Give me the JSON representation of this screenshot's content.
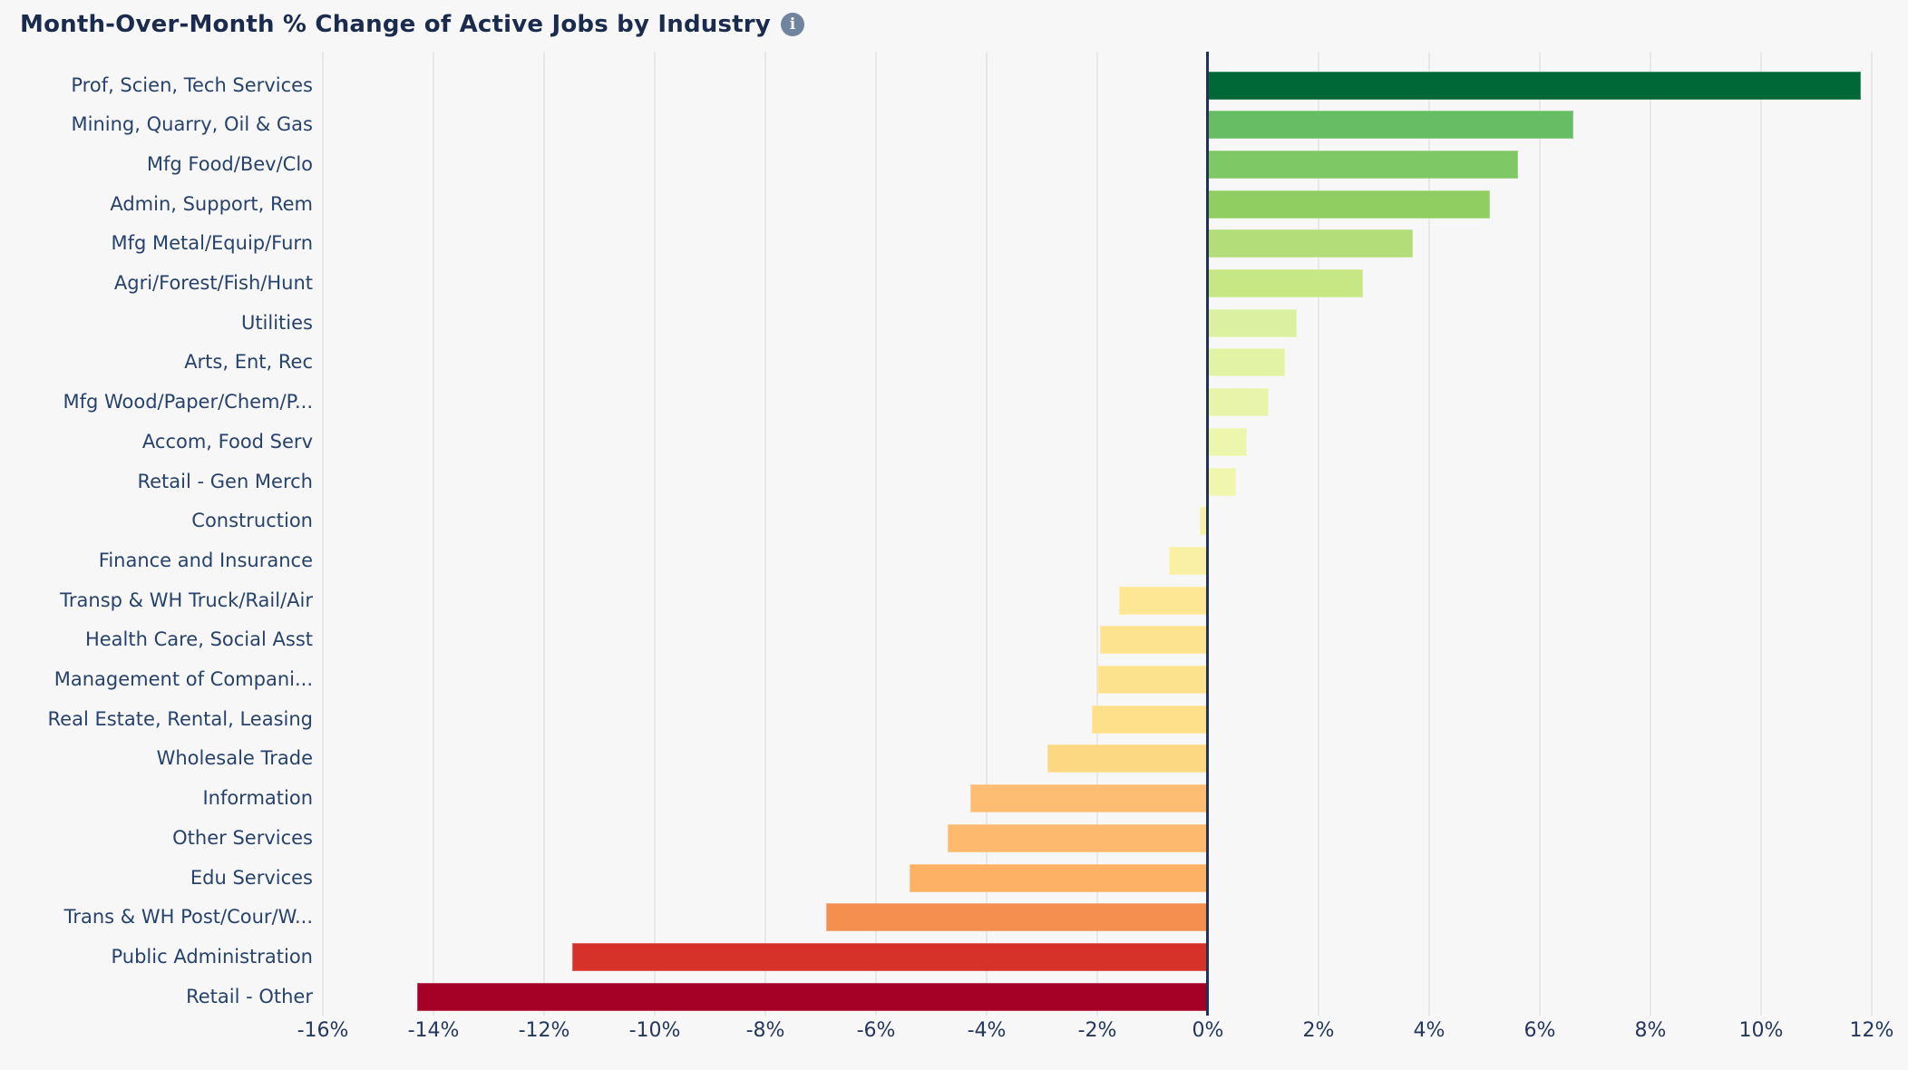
{
  "header": {
    "title": "Month-Over-Month % Change of Active Jobs by Industry",
    "info_icon_glyph": "i"
  },
  "colors": {
    "page_background": "#f7f7f8",
    "title_text": "#1b2b4d",
    "category_text": "#27426b",
    "tick_text": "#24385c",
    "gridline": "#e8e8ea",
    "zero_line": "#233250",
    "info_icon_background": "#71849e"
  },
  "chart_data": {
    "type": "bar",
    "orientation": "horizontal",
    "title": "Month-Over-Month % Change of Active Jobs by Industry",
    "xlabel": "",
    "ylabel": "",
    "xlim": [
      -16,
      12
    ],
    "grid": true,
    "unit": "%",
    "categories": [
      "Prof, Scien, Tech Services",
      "Mining, Quarry, Oil & Gas",
      "Mfg Food/Bev/Clo",
      "Admin, Support, Rem",
      "Mfg Metal/Equip/Furn",
      "Agri/Forest/Fish/Hunt",
      "Utilities",
      "Arts, Ent, Rec",
      "Mfg Wood/Paper/Chem/P...",
      "Accom, Food Serv",
      "Retail - Gen Merch",
      "Construction",
      "Finance and Insurance",
      "Transp & WH Truck/Rail/Air",
      "Health Care, Social Asst",
      "Management of Compani...",
      "Real Estate, Rental, Leasing",
      "Wholesale Trade",
      "Information",
      "Other Services",
      "Edu Services",
      "Trans & WH Post/Cour/W...",
      "Public Administration",
      "Retail - Other"
    ],
    "values": [
      11.8,
      6.6,
      5.6,
      5.1,
      3.7,
      2.8,
      1.6,
      1.4,
      1.1,
      0.7,
      0.5,
      -0.15,
      -0.7,
      -1.6,
      -1.95,
      -2.0,
      -2.1,
      -2.9,
      -4.3,
      -4.7,
      -5.4,
      -6.9,
      -11.5,
      -14.3
    ],
    "bar_colors": [
      "#006837",
      "#66bd63",
      "#7fc866",
      "#90ce62",
      "#b2dd79",
      "#c7e784",
      "#dcf0a2",
      "#e2f3a6",
      "#e7f4a9",
      "#edf6ad",
      "#f0f6ae",
      "#f3f2a8",
      "#f9f0a6",
      "#fde795",
      "#fde390",
      "#fde28d",
      "#fedf8a",
      "#fdd883",
      "#fdbe74",
      "#fdb96d",
      "#fdb164",
      "#f58f50",
      "#d73229",
      "#a50126"
    ],
    "x_axis": {
      "ticks": [
        {
          "v": -16,
          "label": "-16%"
        },
        {
          "v": -14,
          "label": "-14%"
        },
        {
          "v": -12,
          "label": "-12%"
        },
        {
          "v": -10,
          "label": "-10%"
        },
        {
          "v": -8,
          "label": "-8%"
        },
        {
          "v": -6,
          "label": "-6%"
        },
        {
          "v": -4,
          "label": "-4%"
        },
        {
          "v": -2,
          "label": "-2%"
        },
        {
          "v": 0,
          "label": "0%"
        },
        {
          "v": 2,
          "label": "2%"
        },
        {
          "v": 4,
          "label": "4%"
        },
        {
          "v": 6,
          "label": "6%"
        },
        {
          "v": 8,
          "label": "8%"
        },
        {
          "v": 10,
          "label": "10%"
        },
        {
          "v": 12,
          "label": "12%"
        }
      ]
    }
  }
}
